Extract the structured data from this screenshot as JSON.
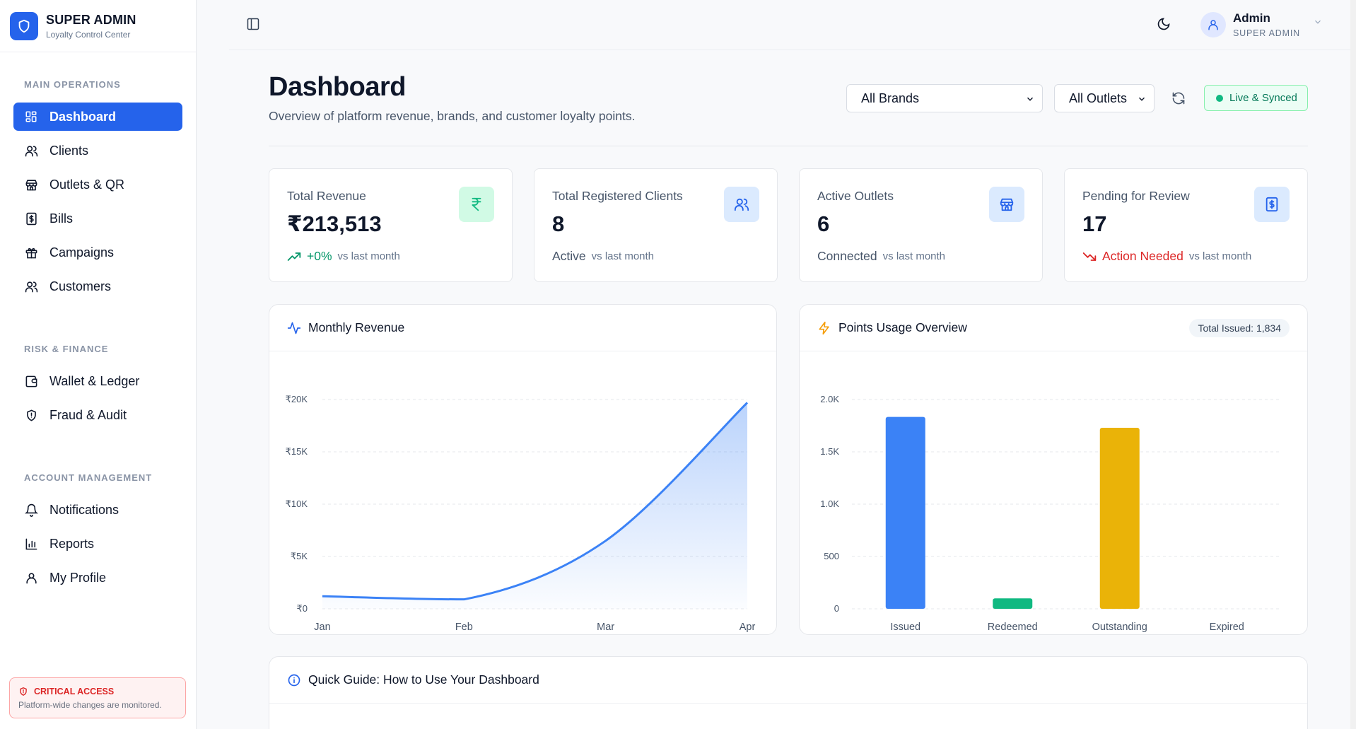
{
  "brand": {
    "title": "SUPER ADMIN",
    "subtitle": "Loyalty Control Center"
  },
  "sidebar": {
    "sections": [
      {
        "label": "MAIN OPERATIONS"
      },
      {
        "label": "RISK & FINANCE"
      },
      {
        "label": "ACCOUNT MANAGEMENT"
      }
    ],
    "items": [
      {
        "label": "Dashboard",
        "icon": "grid-icon",
        "active": true
      },
      {
        "label": "Clients",
        "icon": "users-icon"
      },
      {
        "label": "Outlets & QR",
        "icon": "store-icon"
      },
      {
        "label": "Bills",
        "icon": "receipt-icon"
      },
      {
        "label": "Campaigns",
        "icon": "gift-icon"
      },
      {
        "label": "Customers",
        "icon": "users-icon"
      },
      {
        "label": "Wallet & Ledger",
        "icon": "wallet-icon"
      },
      {
        "label": "Fraud & Audit",
        "icon": "shield-icon"
      },
      {
        "label": "Notifications",
        "icon": "bell-icon"
      },
      {
        "label": "Reports",
        "icon": "bar-chart-icon"
      },
      {
        "label": "My Profile",
        "icon": "user-icon"
      }
    ],
    "critical": {
      "title": "CRITICAL ACCESS",
      "text": "Platform-wide changes are monitored."
    }
  },
  "topbar": {
    "user_name": "Admin",
    "user_role": "SUPER ADMIN"
  },
  "header": {
    "title": "Dashboard",
    "subtitle": "Overview of platform revenue, brands, and customer loyalty points.",
    "brand_select": "All Brands",
    "outlet_select": "All Outlets",
    "status": "Live & Synced"
  },
  "kpis": [
    {
      "label": "Total Revenue",
      "value": "₹213,513",
      "trend": "+0%",
      "trend_color": "#059669",
      "vs": "vs last month",
      "icon": "rupee-icon",
      "icon_bg": "#d1fae5",
      "icon_color": "#10b981"
    },
    {
      "label": "Total Registered Clients",
      "value": "8",
      "trend": "Active",
      "trend_color": "#475569",
      "vs": "vs last month",
      "icon": "users-icon",
      "icon_bg": "#dbeafe",
      "icon_color": "#2563eb"
    },
    {
      "label": "Active Outlets",
      "value": "6",
      "trend": "Connected",
      "trend_color": "#475569",
      "vs": "vs last month",
      "icon": "store-icon",
      "icon_bg": "#dbeafe",
      "icon_color": "#2563eb"
    },
    {
      "label": "Pending for Review",
      "value": "17",
      "trend": "Action Needed",
      "trend_color": "#dc2626",
      "vs": "vs last month",
      "icon": "dollar-receipt-icon",
      "icon_bg": "#dbeafe",
      "icon_color": "#2563eb"
    }
  ],
  "panels": {
    "revenue_title": "Monthly Revenue",
    "points_title": "Points Usage Overview",
    "points_pill": "Total Issued: 1,834"
  },
  "guide": {
    "title": "Quick Guide: How to Use Your Dashboard"
  },
  "chart_data": [
    {
      "type": "area",
      "x": [
        "Jan",
        "Feb",
        "Mar",
        "Apr"
      ],
      "series": [
        {
          "values": [
            1200,
            900,
            6500,
            19700
          ]
        }
      ],
      "yticks": [
        "₹0",
        "₹5K",
        "₹10K",
        "₹15K",
        "₹20K"
      ],
      "ylim": [
        0,
        20000
      ],
      "grid": true,
      "color": "#3b82f6"
    },
    {
      "type": "bar",
      "categories": [
        "Issued",
        "Redeemed",
        "Outstanding",
        "Expired"
      ],
      "values": [
        1834,
        100,
        1730,
        0
      ],
      "colors": [
        "#3b82f6",
        "#10b981",
        "#eab308",
        "#ef4444"
      ],
      "yticks": [
        "0",
        "500",
        "1.0K",
        "1.5K",
        "2.0K"
      ],
      "ylim": [
        0,
        2000
      ],
      "grid": true
    }
  ]
}
